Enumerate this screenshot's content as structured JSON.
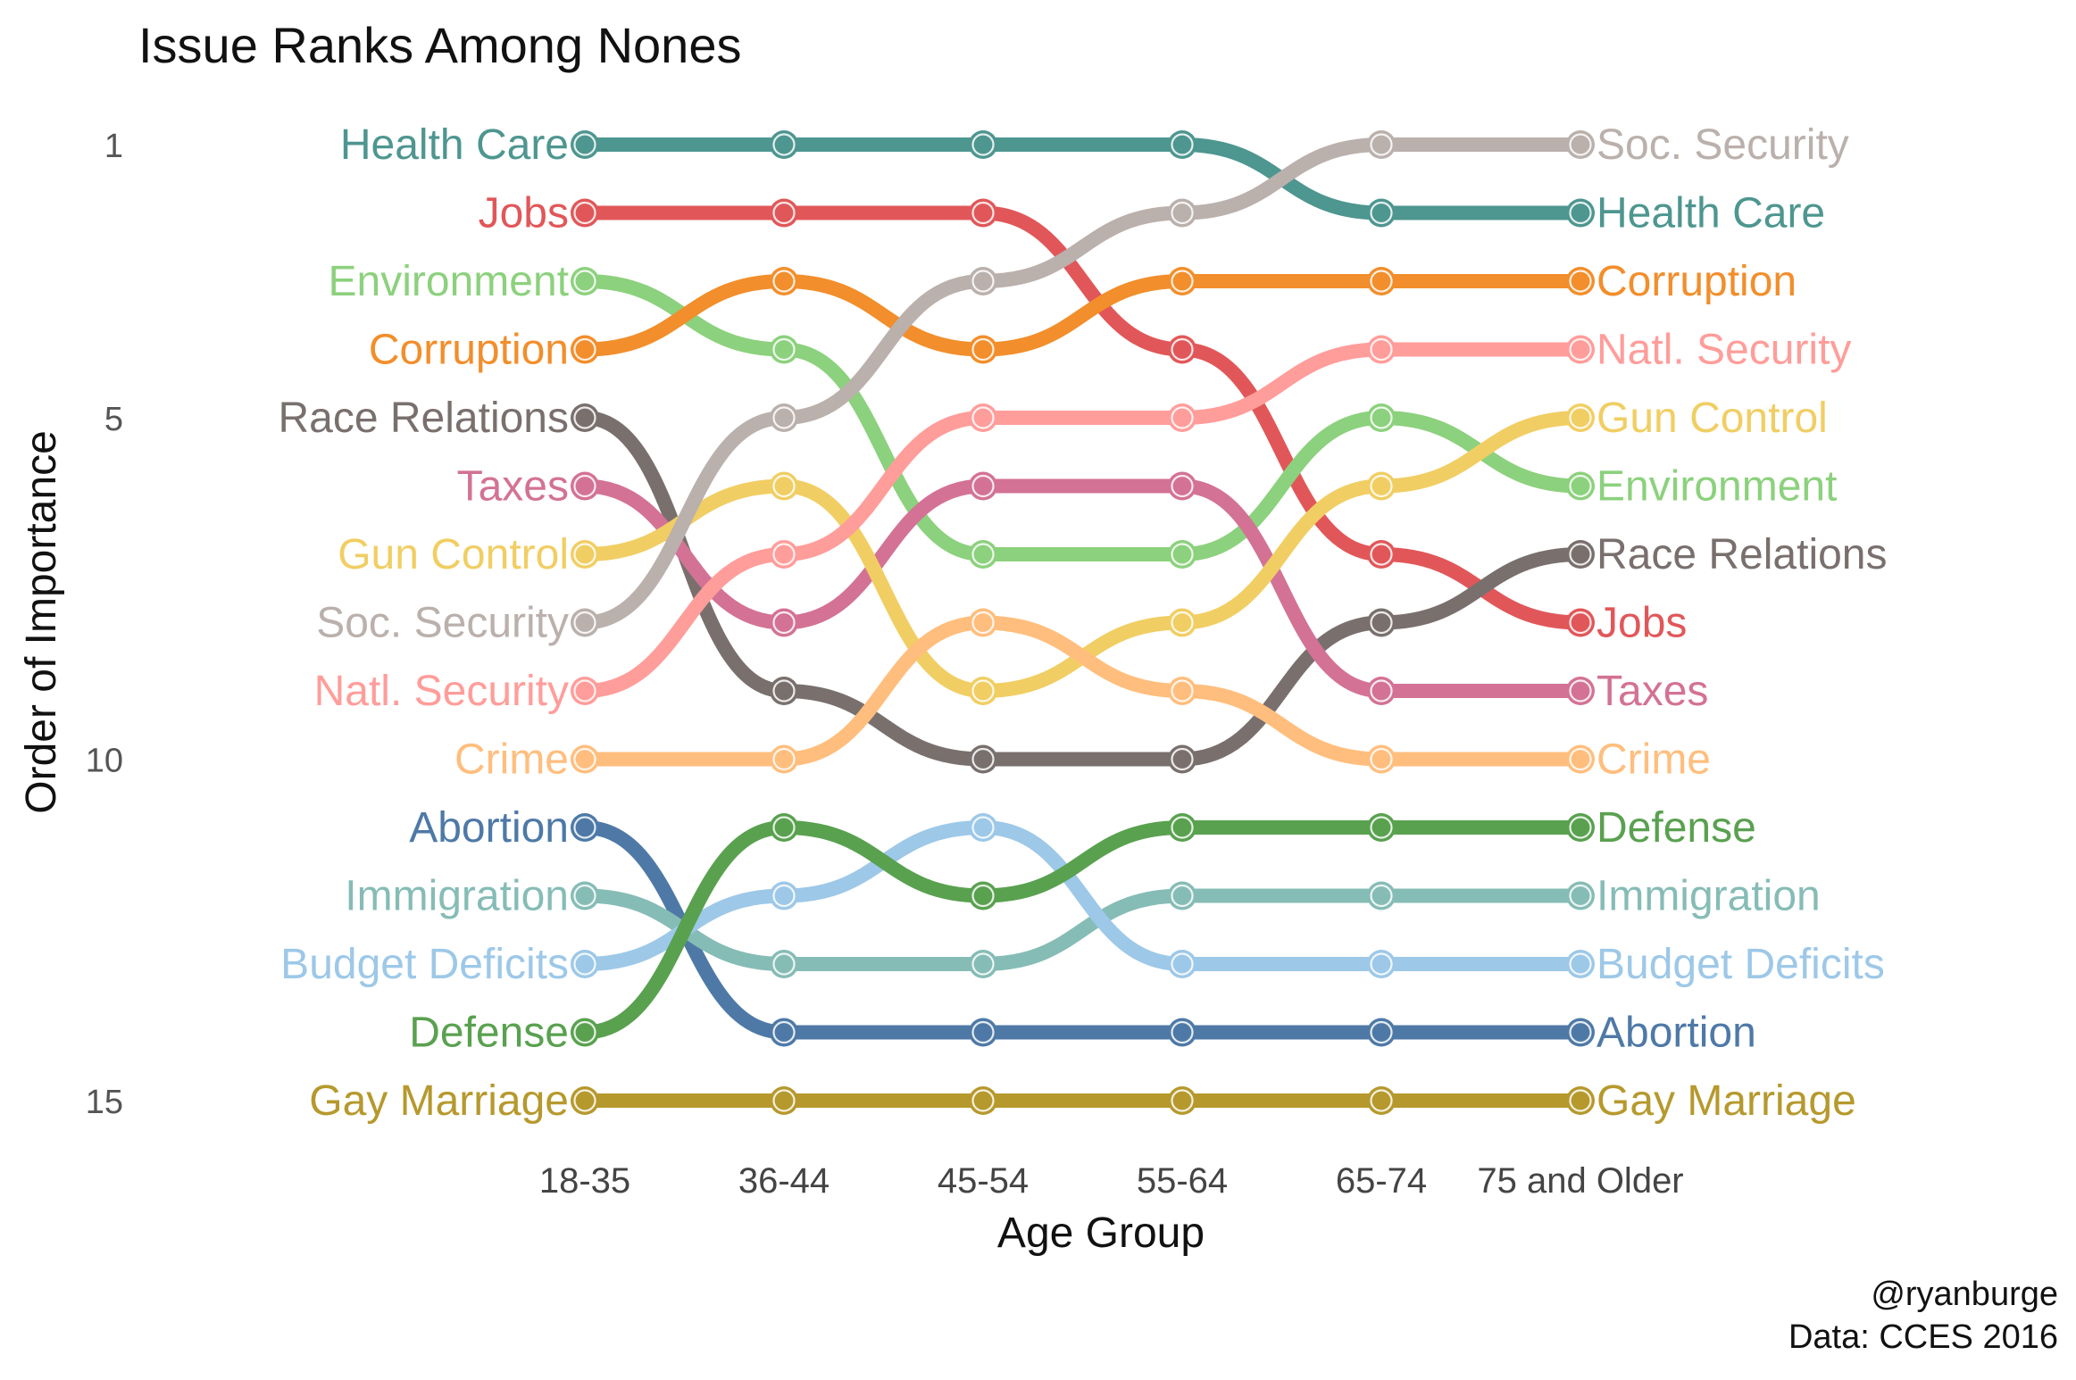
{
  "chart_data": {
    "type": "line",
    "title": "Issue Ranks Among Nones",
    "xlabel": "Age Group",
    "ylabel": "Order of Importance",
    "categories": [
      "18-35",
      "36-44",
      "45-54",
      "55-64",
      "65-74",
      "75 and Older"
    ],
    "y_ticks": [
      "1",
      "5",
      "10",
      "15"
    ],
    "ylim": [
      1,
      15
    ],
    "y_reversed": true,
    "series": [
      {
        "name": "Health Care",
        "color": "#4e9690",
        "ranks": [
          1,
          1,
          1,
          1,
          2,
          2
        ]
      },
      {
        "name": "Jobs",
        "color": "#e15759",
        "ranks": [
          2,
          2,
          2,
          4,
          7,
          8
        ]
      },
      {
        "name": "Environment",
        "color": "#8cd17d",
        "ranks": [
          3,
          4,
          7,
          7,
          5,
          6
        ]
      },
      {
        "name": "Corruption",
        "color": "#f28e2b",
        "ranks": [
          4,
          3,
          4,
          3,
          3,
          3
        ]
      },
      {
        "name": "Race Relations",
        "color": "#79706e",
        "ranks": [
          5,
          9,
          10,
          10,
          8,
          7
        ]
      },
      {
        "name": "Taxes",
        "color": "#d37295",
        "ranks": [
          6,
          8,
          6,
          6,
          9,
          9
        ]
      },
      {
        "name": "Gun Control",
        "color": "#f1ce63",
        "ranks": [
          7,
          6,
          9,
          8,
          6,
          5
        ]
      },
      {
        "name": "Soc. Security",
        "color": "#bab0ac",
        "ranks": [
          8,
          5,
          3,
          2,
          1,
          1
        ]
      },
      {
        "name": "Natl. Security",
        "color": "#ff9d9a",
        "ranks": [
          9,
          7,
          5,
          5,
          4,
          4
        ]
      },
      {
        "name": "Crime",
        "color": "#ffbe7d",
        "ranks": [
          10,
          10,
          8,
          9,
          10,
          10
        ]
      },
      {
        "name": "Abortion",
        "color": "#4e79a7",
        "ranks": [
          11,
          14,
          14,
          14,
          14,
          14
        ]
      },
      {
        "name": "Immigration",
        "color": "#86bcb6",
        "ranks": [
          12,
          13,
          13,
          12,
          12,
          12
        ]
      },
      {
        "name": "Budget Deficits",
        "color": "#9dc8e8",
        "ranks": [
          13,
          12,
          11,
          13,
          13,
          13
        ]
      },
      {
        "name": "Defense",
        "color": "#59a14f",
        "ranks": [
          14,
          11,
          12,
          11,
          11,
          11
        ]
      },
      {
        "name": "Gay Marriage",
        "color": "#b6992d",
        "ranks": [
          15,
          15,
          15,
          15,
          15,
          15
        ]
      }
    ]
  },
  "caption": {
    "handle": "@ryanburge",
    "source": "Data: CCES 2016"
  }
}
